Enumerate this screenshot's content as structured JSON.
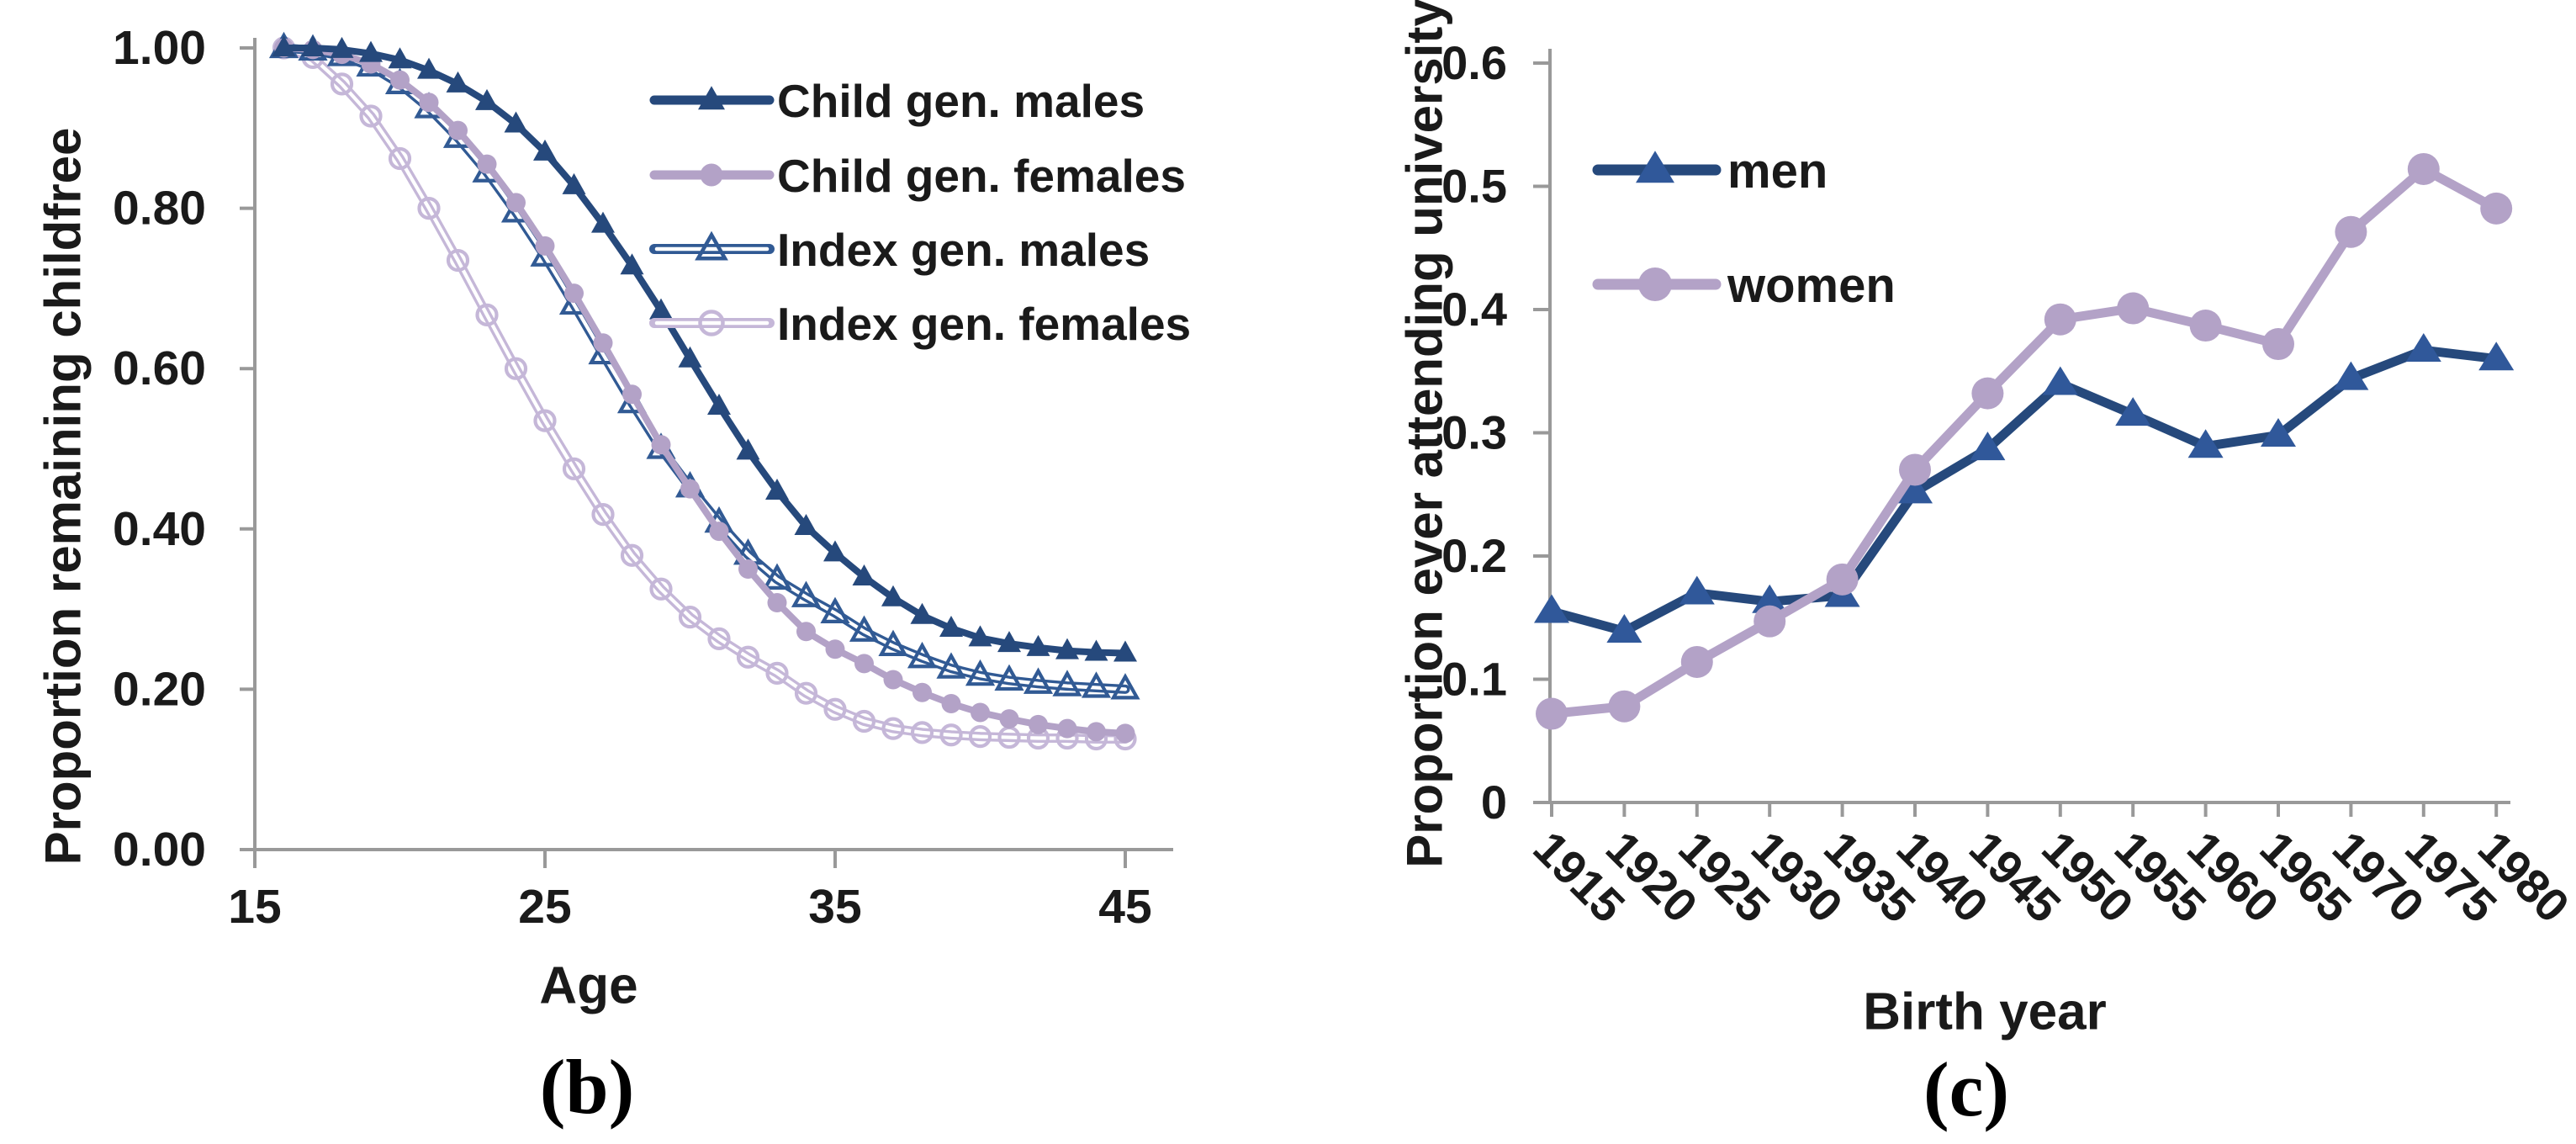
{
  "figure": {
    "background": "#ffffff",
    "text_color": "#1a1a1a",
    "axis_color": "#999999"
  },
  "chart_data": [
    {
      "id": "b",
      "type": "line",
      "caption": "(b)",
      "xlabel": "Age",
      "ylabel": "Proportion remaining childfree",
      "xlim": [
        15,
        46.6
      ],
      "ylim": [
        0,
        1
      ],
      "grid": false,
      "legend_position": "top-right",
      "x_tick_values": [
        15,
        25,
        35,
        45
      ],
      "x_tick_labels": [
        "15",
        "25",
        "35",
        "45"
      ],
      "y_tick_values": [
        0,
        0.2,
        0.4,
        0.6,
        0.8,
        1.0
      ],
      "y_tick_labels": [
        "0.00",
        "0.20",
        "0.40",
        "0.60",
        "0.80",
        "1.00"
      ],
      "x": [
        16,
        17,
        18,
        19,
        20,
        21,
        22,
        23,
        24,
        25,
        26,
        27,
        28,
        29,
        30,
        31,
        32,
        33,
        34,
        35,
        36,
        37,
        38,
        39,
        40,
        41,
        42,
        43,
        44,
        45
      ],
      "series": [
        {
          "name": "Child gen. males",
          "color": "#26497c",
          "marker": "triangle",
          "style": "solid",
          "values": [
            1.0,
            1.0,
            0.998,
            0.993,
            0.985,
            0.972,
            0.955,
            0.933,
            0.905,
            0.87,
            0.828,
            0.78,
            0.728,
            0.672,
            0.612,
            0.553,
            0.497,
            0.447,
            0.403,
            0.37,
            0.34,
            0.314,
            0.292,
            0.276,
            0.264,
            0.257,
            0.252,
            0.248,
            0.246,
            0.245
          ]
        },
        {
          "name": "Child gen. females",
          "color": "#b3a2c7",
          "marker": "circle",
          "style": "solid",
          "values": [
            1.0,
            0.998,
            0.992,
            0.98,
            0.96,
            0.932,
            0.897,
            0.855,
            0.807,
            0.753,
            0.694,
            0.632,
            0.568,
            0.505,
            0.45,
            0.397,
            0.35,
            0.308,
            0.272,
            0.25,
            0.232,
            0.212,
            0.196,
            0.182,
            0.171,
            0.163,
            0.156,
            0.151,
            0.147,
            0.145
          ]
        },
        {
          "name": "Index gen. males",
          "color": "#315a94",
          "marker": "triangle",
          "style": "open",
          "values": [
            1.0,
            0.997,
            0.99,
            0.977,
            0.955,
            0.925,
            0.888,
            0.845,
            0.795,
            0.74,
            0.68,
            0.618,
            0.557,
            0.5,
            0.452,
            0.408,
            0.368,
            0.337,
            0.315,
            0.295,
            0.272,
            0.254,
            0.239,
            0.226,
            0.217,
            0.211,
            0.207,
            0.204,
            0.202,
            0.2
          ]
        },
        {
          "name": "Index gen. females",
          "color": "#c5b7d8",
          "marker": "circle",
          "style": "open",
          "values": [
            1.0,
            0.988,
            0.955,
            0.915,
            0.862,
            0.8,
            0.735,
            0.667,
            0.6,
            0.535,
            0.475,
            0.418,
            0.367,
            0.325,
            0.29,
            0.263,
            0.24,
            0.22,
            0.195,
            0.175,
            0.16,
            0.151,
            0.146,
            0.143,
            0.141,
            0.14,
            0.139,
            0.139,
            0.138,
            0.138
          ]
        }
      ]
    },
    {
      "id": "c",
      "type": "line",
      "caption": "(c)",
      "xlabel": "Birth year",
      "ylabel": "Proportion ever attending university",
      "xlim": [
        1913,
        1982
      ],
      "ylim": [
        0,
        0.6
      ],
      "grid": false,
      "legend_position": "top-left",
      "x_tick_values": [
        1915,
        1920,
        1925,
        1930,
        1935,
        1940,
        1945,
        1950,
        1955,
        1960,
        1965,
        1970,
        1975,
        1980
      ],
      "x_tick_labels": [
        "1915",
        "1920",
        "1925",
        "1930",
        "1935",
        "1940",
        "1945",
        "1950",
        "1955",
        "1960",
        "1965",
        "1970",
        "1975",
        "1980"
      ],
      "y_tick_values": [
        0,
        0.1,
        0.2,
        0.3,
        0.4,
        0.5,
        0.6
      ],
      "y_tick_labels": [
        "0",
        "0.1",
        "0.2",
        "0.3",
        "0.4",
        "0.5",
        "0.6"
      ],
      "x": [
        1915,
        1920,
        1925,
        1930,
        1935,
        1940,
        1945,
        1950,
        1955,
        1960,
        1965,
        1970,
        1975,
        1980
      ],
      "series": [
        {
          "name": "men",
          "color": "#26497c",
          "marker_color": "#30589a",
          "marker": "triangle",
          "style": "solid",
          "values": [
            0.155,
            0.139,
            0.17,
            0.163,
            0.168,
            0.252,
            0.287,
            0.34,
            0.315,
            0.289,
            0.298,
            0.344,
            0.367,
            0.36
          ]
        },
        {
          "name": "women",
          "color": "#b3a2c7",
          "marker_color": "#b3a2c7",
          "marker": "circle",
          "style": "solid",
          "values": [
            0.072,
            0.078,
            0.114,
            0.147,
            0.181,
            0.27,
            0.332,
            0.392,
            0.401,
            0.387,
            0.372,
            0.463,
            0.514,
            0.482
          ]
        }
      ]
    }
  ]
}
